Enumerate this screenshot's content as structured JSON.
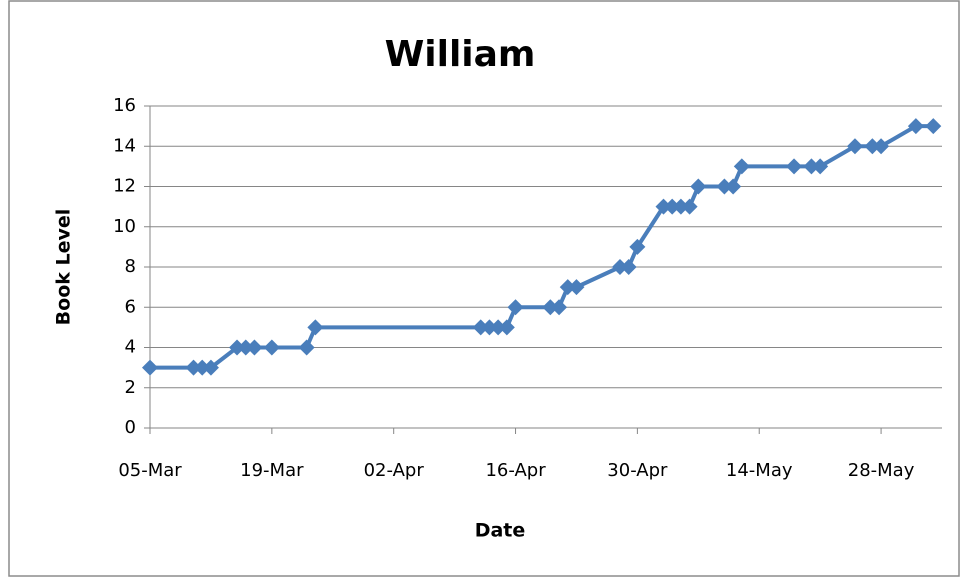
{
  "chart_data": {
    "type": "line",
    "title": "William",
    "x_label": "Date",
    "y_label": "Book Level",
    "x": [
      "05-Mar",
      "10-Mar",
      "11-Mar",
      "12-Mar",
      "15-Mar",
      "16-Mar",
      "17-Mar",
      "19-Mar",
      "23-Mar",
      "24-Mar",
      "12-Apr",
      "13-Apr",
      "14-Apr",
      "15-Apr",
      "16-Apr",
      "20-Apr",
      "21-Apr",
      "22-Apr",
      "23-Apr",
      "28-Apr",
      "29-Apr",
      "30-Apr",
      "03-May",
      "04-May",
      "05-May",
      "06-May",
      "07-May",
      "10-May",
      "11-May",
      "12-May",
      "18-May",
      "20-May",
      "21-May",
      "25-May",
      "27-May",
      "28-May",
      "01-Jun",
      "03-Jun"
    ],
    "series": [
      {
        "name": "William",
        "color": "#4a7ebb",
        "values": [
          3,
          3,
          3,
          3,
          4,
          4,
          4,
          4,
          4,
          5,
          5,
          5,
          5,
          5,
          6,
          6,
          6,
          7,
          7,
          8,
          8,
          9,
          11,
          11,
          11,
          11,
          12,
          12,
          12,
          13,
          13,
          13,
          13,
          14,
          14,
          14,
          15,
          15
        ]
      }
    ],
    "xlim": [
      "05-Mar",
      "04-Jun"
    ],
    "xticks": [
      "05-Mar",
      "19-Mar",
      "02-Apr",
      "16-Apr",
      "30-Apr",
      "14-May",
      "28-May"
    ],
    "ylim": [
      0,
      16
    ],
    "yticks": [
      0,
      2,
      4,
      6,
      8,
      10,
      12,
      14,
      16
    ],
    "grid": true
  }
}
